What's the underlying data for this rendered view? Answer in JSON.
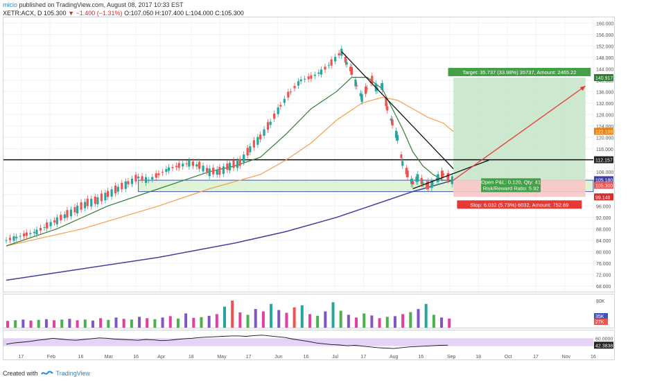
{
  "header": {
    "user": "micio",
    "published_text": "published on TradingView.com, August 08, 2017 10:33 EST"
  },
  "symbol_line": {
    "ticker": "XETR:ACX, D",
    "last": "105.300",
    "change": "▼ −1.400 (−1.31%)",
    "ohlc": "O:107.050 H:107.400 L:104.000 C:105.300"
  },
  "footer": {
    "created_with": "Created with",
    "brand": "TradingView"
  },
  "colors": {
    "up": "#26a69a",
    "down": "#ef5350",
    "sma_fast": "#2e7d32",
    "sma_mid": "#f5a04a",
    "sma_slow": "#3f3f9e",
    "target_zone": "#c8e6c9",
    "stop_zone": "#f8c8c8",
    "support_band": "#dff4d6",
    "rsi_band": "#e6d2f7",
    "accent": "#1e88e5"
  },
  "chart_data": [
    {
      "type": "candlestick",
      "title": "",
      "ylim": [
        66,
        162
      ],
      "y_ticks": [
        "160.000",
        "156.000",
        "152.000",
        "148.000",
        "144.000",
        "140.000",
        "136.000",
        "132.000",
        "128.000",
        "124.000",
        "120.000",
        "116.000",
        "112.000",
        "108.000",
        "104.000",
        "100.000",
        "96.000",
        "92.000",
        "88.000",
        "84.000",
        "80.000",
        "76.000",
        "72.000",
        "68.000"
      ],
      "x_tick_labels": [
        "17",
        "Feb",
        "16",
        "Mar",
        "16",
        "Apr",
        "18",
        "May",
        "17",
        "Jun",
        "16",
        "Jul",
        "17",
        "Aug",
        "16",
        "Sep",
        "18",
        "Oct",
        "17",
        "Nov",
        "16"
      ],
      "grid": true,
      "price_labels": [
        {
          "text": "140.917",
          "color": "#2e7d32"
        },
        {
          "text": "122.108",
          "color": "#f57c00"
        },
        {
          "text": "112.157",
          "color": "#222222"
        },
        {
          "text": "105.180",
          "color": "#3f3f9e"
        },
        {
          "text": "105.300",
          "color": "#ef5350"
        },
        {
          "text": "99.148",
          "color": "#d32f2f"
        }
      ],
      "horizontal_line": 112.157,
      "support_band": [
        101,
        105
      ],
      "position": {
        "entry": 105.18,
        "target": 140.917,
        "stop": 99.148,
        "target_label": "Target: 35.737 (33.98%) 35737, Amount: 2465.22",
        "open_label": "Open P&L: 0.120, Qty: 41",
        "rr_label": "Risk/Reward Ratio: 5.92",
        "stop_label": "Stop: 6.032 (5.73%) 6032, Amount: 752.69"
      },
      "price_path": [
        [
          0,
          84
        ],
        [
          4,
          85
        ],
        [
          8,
          86
        ],
        [
          12,
          87
        ],
        [
          16,
          89
        ],
        [
          20,
          91
        ],
        [
          24,
          93
        ],
        [
          28,
          95
        ],
        [
          32,
          97
        ],
        [
          36,
          98
        ],
        [
          40,
          100
        ],
        [
          44,
          102
        ],
        [
          48,
          104
        ],
        [
          52,
          106
        ],
        [
          56,
          105
        ],
        [
          60,
          107
        ],
        [
          64,
          109
        ],
        [
          68,
          110
        ],
        [
          72,
          111
        ],
        [
          76,
          110
        ],
        [
          80,
          108
        ],
        [
          84,
          108
        ],
        [
          88,
          110
        ],
        [
          92,
          111
        ],
        [
          96,
          116
        ],
        [
          100,
          120
        ],
        [
          104,
          125
        ],
        [
          108,
          131
        ],
        [
          112,
          136
        ],
        [
          116,
          140
        ],
        [
          120,
          141
        ],
        [
          124,
          143
        ],
        [
          128,
          146
        ],
        [
          132,
          150
        ],
        [
          134,
          146
        ],
        [
          136,
          143
        ],
        [
          138,
          138
        ],
        [
          140,
          134
        ],
        [
          142,
          137
        ],
        [
          144,
          140
        ],
        [
          146,
          137
        ],
        [
          148,
          138
        ],
        [
          150,
          130
        ],
        [
          152,
          125
        ],
        [
          154,
          120
        ],
        [
          156,
          111
        ],
        [
          158,
          107
        ],
        [
          160,
          104
        ],
        [
          162,
          106
        ],
        [
          164,
          104
        ],
        [
          166,
          103
        ],
        [
          168,
          104
        ],
        [
          170,
          106
        ],
        [
          172,
          107
        ],
        [
          174,
          106
        ],
        [
          176,
          105
        ]
      ],
      "sma_fast_path": [
        [
          0,
          82
        ],
        [
          20,
          88
        ],
        [
          40,
          96
        ],
        [
          60,
          102
        ],
        [
          80,
          108
        ],
        [
          90,
          110
        ],
        [
          100,
          113
        ],
        [
          110,
          121
        ],
        [
          120,
          130
        ],
        [
          130,
          136
        ],
        [
          136,
          141
        ],
        [
          142,
          141
        ],
        [
          148,
          137
        ],
        [
          152,
          130
        ],
        [
          156,
          123
        ],
        [
          160,
          115
        ],
        [
          164,
          110
        ],
        [
          168,
          107
        ],
        [
          172,
          105
        ],
        [
          176,
          105
        ]
      ],
      "sma_mid_path": [
        [
          0,
          82
        ],
        [
          30,
          88
        ],
        [
          60,
          96
        ],
        [
          80,
          102
        ],
        [
          100,
          107
        ],
        [
          110,
          112
        ],
        [
          120,
          118
        ],
        [
          130,
          126
        ],
        [
          140,
          132
        ],
        [
          148,
          134
        ],
        [
          154,
          133
        ],
        [
          160,
          130
        ],
        [
          166,
          127
        ],
        [
          172,
          125
        ],
        [
          176,
          122
        ]
      ],
      "sma_slow_path": [
        [
          0,
          70
        ],
        [
          30,
          74
        ],
        [
          60,
          78
        ],
        [
          90,
          83
        ],
        [
          110,
          87
        ],
        [
          130,
          92
        ],
        [
          140,
          95
        ],
        [
          150,
          98
        ],
        [
          160,
          101
        ],
        [
          168,
          103
        ],
        [
          176,
          105
        ]
      ],
      "trendline_down": [
        [
          132,
          150
        ],
        [
          176,
          109
        ]
      ],
      "trendline_up": [
        [
          160,
          102
        ],
        [
          190,
          112
        ]
      ],
      "projection_arrow": [
        [
          176,
          105
        ],
        [
          228,
          138
        ]
      ]
    },
    {
      "type": "bar",
      "title": "",
      "ylabels": [
        "80K"
      ],
      "price_labels": [
        {
          "text": "35K",
          "color": "#3f51b5"
        },
        {
          "text": "27K",
          "color": "#ef5350"
        }
      ],
      "values": [
        20,
        22,
        24,
        21,
        23,
        25,
        22,
        24,
        26,
        22,
        24,
        21,
        28,
        23,
        30,
        26,
        24,
        32,
        28,
        25,
        30,
        34,
        27,
        42,
        29,
        31,
        35,
        40,
        62,
        80,
        45,
        38,
        55,
        48,
        70,
        52,
        44,
        60,
        66,
        40,
        35,
        48,
        75,
        50,
        38,
        30,
        42,
        36,
        28,
        32,
        34,
        40,
        46,
        55,
        70,
        38,
        30,
        27
      ],
      "colors_pattern": "alternating"
    },
    {
      "type": "line",
      "title": "",
      "ylabels": [
        "60.0000"
      ],
      "price_labels": [
        {
          "text": "42.3838",
          "color": "#222222"
        }
      ],
      "band": [
        40,
        60
      ],
      "values": [
        45,
        48,
        50,
        52,
        55,
        57,
        60,
        58,
        56,
        55,
        57,
        59,
        61,
        60,
        58,
        57,
        56,
        55,
        57,
        56,
        54,
        55,
        57,
        59,
        60,
        62,
        63,
        64,
        65,
        66,
        66,
        65,
        67,
        68,
        66,
        64,
        62,
        58,
        55,
        52,
        48,
        46,
        44,
        43,
        41,
        42,
        40,
        38,
        36,
        35,
        34,
        36,
        38,
        39,
        40,
        41,
        42,
        42.38
      ]
    }
  ]
}
